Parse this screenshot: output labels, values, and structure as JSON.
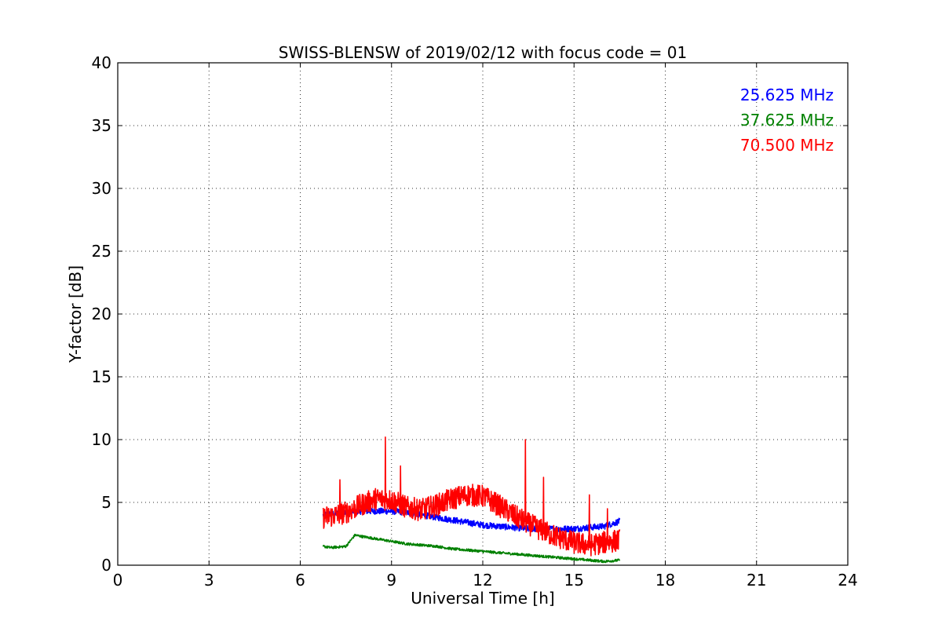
{
  "chart_data": {
    "type": "line",
    "title": "SWISS-BLENSW of 2019/02/12 with focus code = 01",
    "xlabel": "Universal Time [h]",
    "ylabel": "Y-factor [dB]",
    "xlim": [
      0,
      24
    ],
    "ylim": [
      0,
      40
    ],
    "xticks": [
      0,
      3,
      6,
      9,
      12,
      15,
      18,
      21,
      24
    ],
    "yticks": [
      0,
      5,
      10,
      15,
      20,
      25,
      30,
      35,
      40
    ],
    "grid": true,
    "legend_position": "top-right",
    "series": [
      {
        "name": "25.625 MHz",
        "color": "#0000ff",
        "noise": 0.25,
        "x": [
          6.75,
          7.0,
          7.5,
          8.0,
          8.5,
          9.0,
          9.5,
          10.0,
          10.5,
          11.0,
          11.5,
          12.0,
          12.5,
          13.0,
          13.5,
          14.0,
          14.5,
          15.0,
          15.5,
          16.0,
          16.5
        ],
        "y": [
          4.0,
          4.1,
          4.2,
          4.3,
          4.3,
          4.3,
          4.2,
          4.0,
          3.8,
          3.6,
          3.4,
          3.2,
          3.1,
          3.0,
          2.9,
          2.9,
          2.9,
          2.9,
          3.0,
          3.1,
          3.5
        ]
      },
      {
        "name": "37.625 MHz",
        "color": "#008000",
        "noise": 0.1,
        "x": [
          6.75,
          7.0,
          7.5,
          7.8,
          8.0,
          8.5,
          9.0,
          9.5,
          10.0,
          10.5,
          11.0,
          11.5,
          12.0,
          12.5,
          13.0,
          13.5,
          14.0,
          14.5,
          15.0,
          15.5,
          16.0,
          16.5
        ],
        "y": [
          1.5,
          1.4,
          1.5,
          2.4,
          2.3,
          2.1,
          1.9,
          1.7,
          1.6,
          1.5,
          1.3,
          1.2,
          1.1,
          1.0,
          0.9,
          0.8,
          0.7,
          0.6,
          0.5,
          0.4,
          0.3,
          0.4
        ]
      },
      {
        "name": "70.500 MHz",
        "color": "#ff0000",
        "noise": 0.9,
        "x": [
          6.75,
          7.0,
          7.5,
          8.0,
          8.5,
          9.0,
          9.5,
          10.0,
          10.5,
          11.0,
          11.5,
          12.0,
          12.5,
          13.0,
          13.5,
          14.0,
          14.5,
          15.0,
          15.5,
          16.0,
          16.5
        ],
        "y": [
          3.8,
          3.9,
          4.2,
          4.8,
          5.3,
          5.2,
          4.6,
          4.4,
          4.8,
          5.3,
          5.6,
          5.5,
          4.8,
          4.0,
          3.3,
          2.7,
          2.2,
          1.8,
          1.6,
          1.8,
          2.0
        ],
        "spikes": [
          [
            7.3,
            6.8
          ],
          [
            8.8,
            10.2
          ],
          [
            9.3,
            7.9
          ],
          [
            13.4,
            10.0
          ],
          [
            14.0,
            7.0
          ],
          [
            15.5,
            5.6
          ],
          [
            16.1,
            4.5
          ]
        ]
      }
    ]
  }
}
